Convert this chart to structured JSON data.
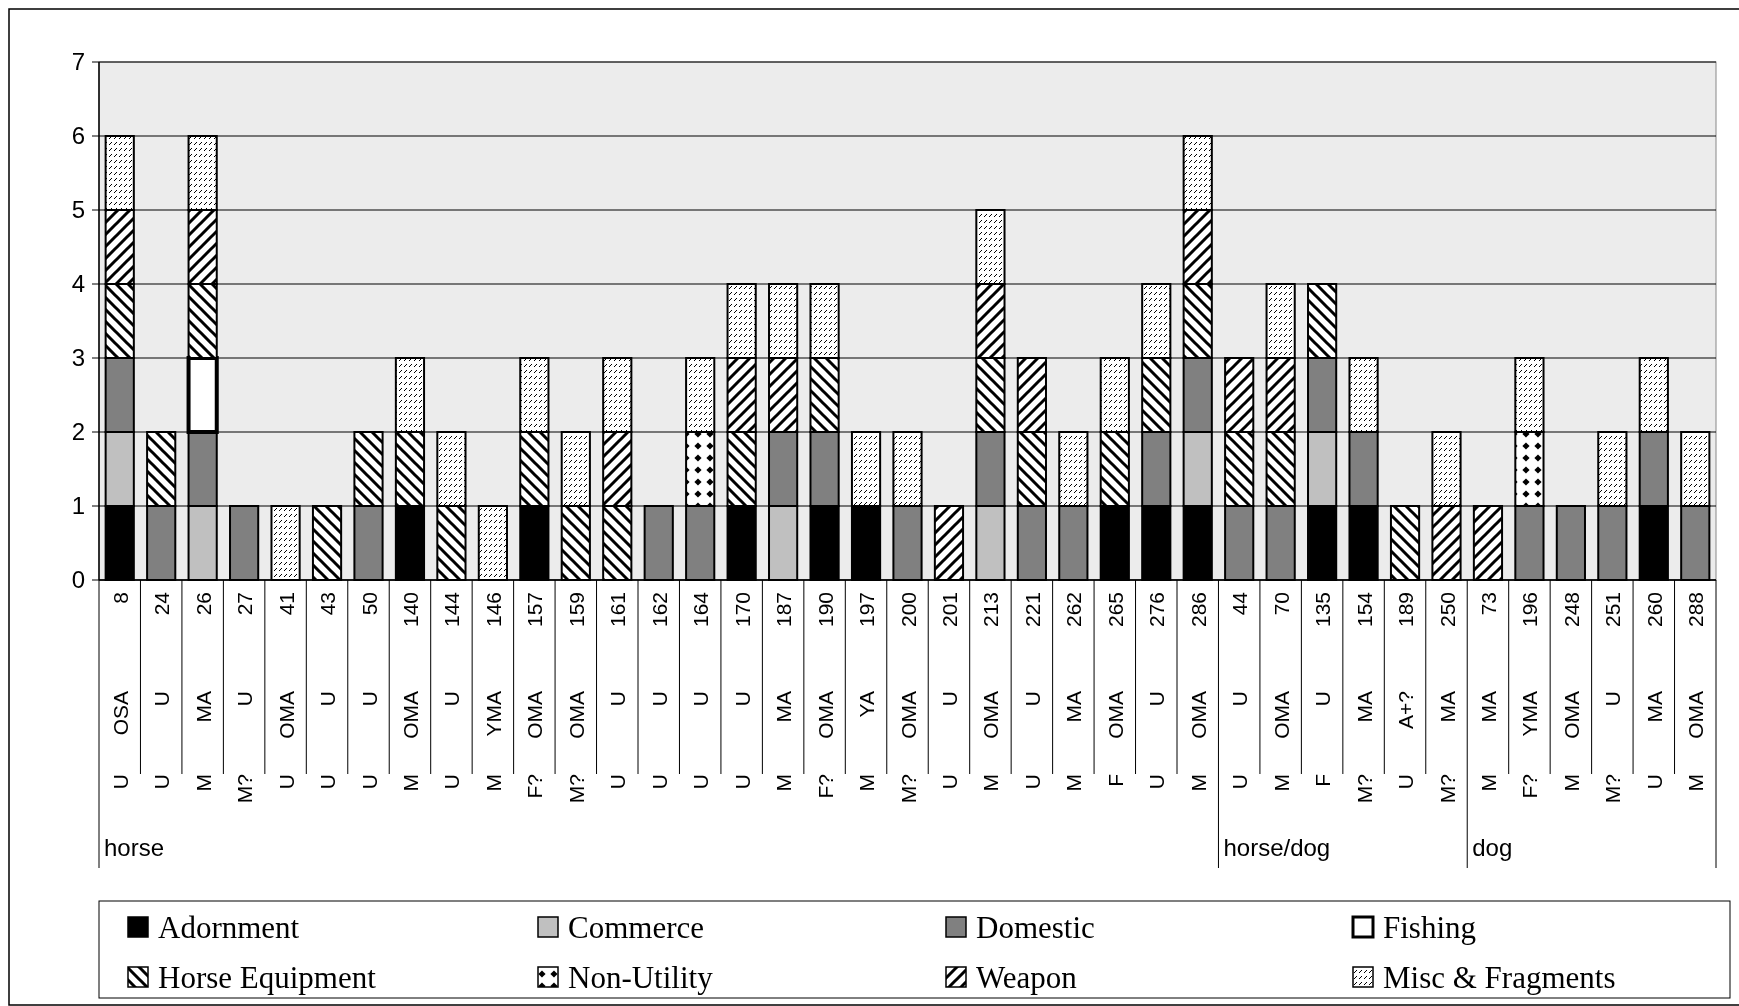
{
  "chart_data": {
    "type": "bar",
    "stacked": true,
    "ylim": [
      0,
      7
    ],
    "yticks": [
      0,
      1,
      2,
      3,
      4,
      5,
      6,
      7
    ],
    "grid": "y",
    "legend": "bottom",
    "categories": [
      "U OSA 8",
      "U U 24",
      "M MA 26",
      "M? U 27",
      "U OMA 41",
      "U U 43",
      "U U 50",
      "M OMA 140",
      "U U 144",
      "M YMA 146",
      "F? OMA 157",
      "M? OMA 159",
      "U U 161",
      "U U 162",
      "U U 164",
      "U U 170",
      "M MA 187",
      "F? OMA 190",
      "M YA 197",
      "M? OMA 200",
      "U U 201",
      "M OMA 213",
      "U U 221",
      "M MA 262",
      "F OMA 265",
      "U U 276",
      "M OMA 286",
      "U U 44",
      "M OMA 70",
      "F U 135",
      "M? MA 154",
      "U A+? 189",
      "M? MA 250",
      "M MA 73",
      "F? YMA 196",
      "M OMA 248",
      "M? U 251",
      "U MA 260",
      "M OMA 288"
    ],
    "annotations": [
      "horse",
      "horse/dog",
      "dog"
    ],
    "series": [
      {
        "name": "Adornment",
        "color": "#000000",
        "values": [
          1,
          null,
          null,
          null,
          null,
          null,
          null,
          1,
          null,
          null,
          1,
          null,
          null,
          null,
          null,
          1,
          null,
          1,
          1,
          null,
          null,
          null,
          null,
          null,
          1,
          1,
          1,
          null,
          null,
          1,
          1,
          null,
          null,
          null,
          null,
          null,
          null,
          1,
          null
        ]
      },
      {
        "name": "Commerce",
        "color": "#c0c0c0",
        "values": [
          1,
          null,
          1,
          null,
          null,
          null,
          null,
          null,
          null,
          null,
          null,
          null,
          null,
          null,
          null,
          null,
          1,
          null,
          null,
          null,
          null,
          1,
          null,
          null,
          null,
          null,
          1,
          null,
          null,
          1,
          null,
          null,
          null,
          null,
          null,
          null,
          null,
          null,
          null
        ]
      },
      {
        "name": "Domestic",
        "color": "#808080",
        "values": [
          1,
          1,
          1,
          1,
          null,
          null,
          1,
          null,
          null,
          null,
          null,
          null,
          null,
          1,
          1,
          null,
          1,
          1,
          null,
          1,
          null,
          1,
          1,
          1,
          null,
          1,
          1,
          1,
          1,
          1,
          1,
          null,
          null,
          null,
          1,
          1,
          1,
          1,
          1
        ]
      },
      {
        "name": "Fishing",
        "color": "#ffffff",
        "values": [
          null,
          null,
          1,
          null,
          null,
          null,
          null,
          null,
          null,
          null,
          null,
          null,
          null,
          null,
          null,
          null,
          null,
          null,
          null,
          null,
          null,
          null,
          null,
          null,
          null,
          null,
          null,
          null,
          null,
          null,
          null,
          null,
          null,
          null,
          null,
          null,
          null,
          null,
          null
        ]
      },
      {
        "name": "Horse Equipment",
        "color": "#000000",
        "values": [
          1,
          1,
          1,
          null,
          null,
          1,
          1,
          1,
          1,
          null,
          1,
          1,
          1,
          null,
          null,
          1,
          null,
          1,
          null,
          null,
          null,
          1,
          1,
          null,
          1,
          1,
          1,
          1,
          1,
          1,
          null,
          1,
          null,
          null,
          null,
          null,
          null,
          null,
          null
        ]
      },
      {
        "name": "Non-Utility",
        "color": "#000000",
        "values": [
          null,
          null,
          null,
          null,
          null,
          null,
          null,
          null,
          null,
          null,
          null,
          null,
          null,
          null,
          1,
          null,
          null,
          null,
          null,
          null,
          null,
          null,
          null,
          null,
          null,
          null,
          null,
          null,
          null,
          null,
          null,
          null,
          null,
          null,
          1,
          null,
          null,
          null,
          null
        ]
      },
      {
        "name": "Weapon",
        "color": "#000000",
        "values": [
          1,
          null,
          1,
          null,
          null,
          null,
          null,
          null,
          null,
          null,
          null,
          null,
          1,
          null,
          null,
          1,
          1,
          null,
          null,
          null,
          1,
          1,
          1,
          null,
          null,
          null,
          1,
          1,
          1,
          null,
          null,
          null,
          1,
          1,
          null,
          null,
          null,
          null,
          null
        ]
      },
      {
        "name": "Misc & Fragments",
        "color": "#000000",
        "values": [
          1,
          null,
          1,
          null,
          1,
          null,
          null,
          1,
          1,
          1,
          1,
          1,
          1,
          null,
          1,
          1,
          1,
          1,
          1,
          1,
          null,
          1,
          null,
          1,
          1,
          1,
          1,
          null,
          1,
          null,
          1,
          null,
          1,
          null,
          1,
          null,
          1,
          1,
          1
        ]
      }
    ]
  }
}
